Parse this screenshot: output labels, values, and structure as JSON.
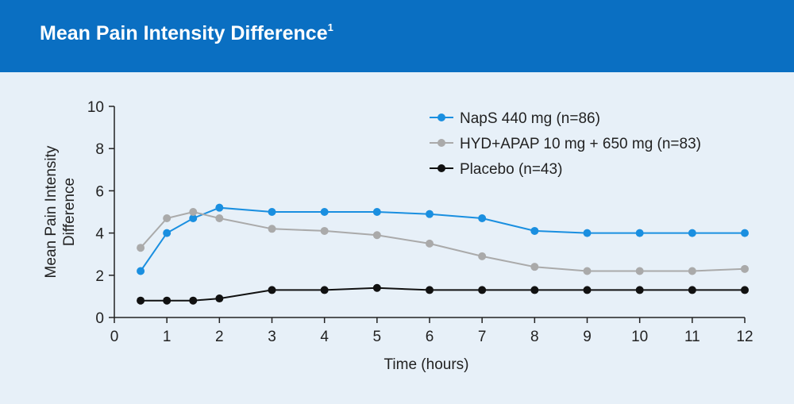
{
  "header": {
    "title": "Mean Pain Intensity Difference",
    "superscript": "1",
    "background": "#0a6fc2"
  },
  "chart_data": {
    "type": "line",
    "title": "Mean Pain Intensity Difference",
    "xlabel": "Time (hours)",
    "ylabel_lines": [
      "Mean Pain Intensity",
      "Difference"
    ],
    "xlim": [
      0,
      12
    ],
    "ylim": [
      0,
      10
    ],
    "xticks": [
      0,
      1,
      2,
      3,
      4,
      5,
      6,
      7,
      8,
      9,
      10,
      11,
      12
    ],
    "yticks": [
      0,
      2,
      4,
      6,
      8,
      10
    ],
    "grid": false,
    "legend_position": "top-right",
    "x": [
      0.5,
      1,
      1.5,
      2,
      3,
      4,
      5,
      6,
      7,
      8,
      9,
      10,
      11,
      12
    ],
    "series": [
      {
        "name": "NapS 440 mg (n=86)",
        "color": "#1a8fe0",
        "values": [
          2.2,
          4.0,
          4.7,
          5.2,
          5.0,
          5.0,
          5.0,
          4.9,
          4.7,
          4.1,
          4.0,
          4.0,
          4.0,
          4.0
        ]
      },
      {
        "name": "HYD+APAP 10 mg + 650 mg (n=83)",
        "color": "#aaaaaa",
        "values": [
          3.3,
          4.7,
          5.0,
          4.7,
          4.2,
          4.1,
          3.9,
          3.5,
          2.9,
          2.4,
          2.2,
          2.2,
          2.2,
          2.3
        ]
      },
      {
        "name": "Placebo (n=43)",
        "color": "#111111",
        "values": [
          0.8,
          0.8,
          0.8,
          0.9,
          1.3,
          1.3,
          1.4,
          1.3,
          1.3,
          1.3,
          1.3,
          1.3,
          1.3,
          1.3
        ]
      }
    ]
  }
}
